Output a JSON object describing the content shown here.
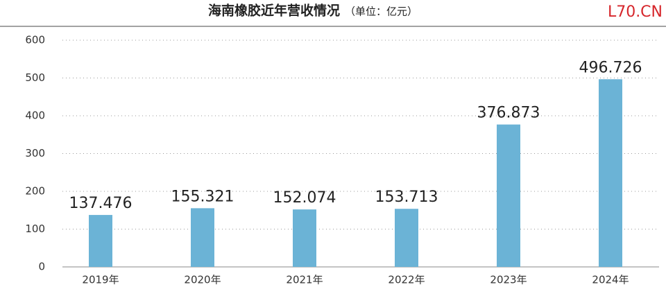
{
  "chart_data": {
    "type": "bar",
    "title": "海南橡胶近年营收情况",
    "subtitle": "（单位：亿元）",
    "watermark": "L70.CN",
    "categories": [
      "2019年",
      "2020年",
      "2021年",
      "2022年",
      "2023年",
      "2024年"
    ],
    "values": [
      137.476,
      155.321,
      152.074,
      153.713,
      376.873,
      496.726
    ],
    "color": "#6bb3d6",
    "ylim": [
      0,
      600
    ],
    "yticks": [
      0,
      100,
      200,
      300,
      400,
      500,
      600
    ],
    "grid": true
  }
}
